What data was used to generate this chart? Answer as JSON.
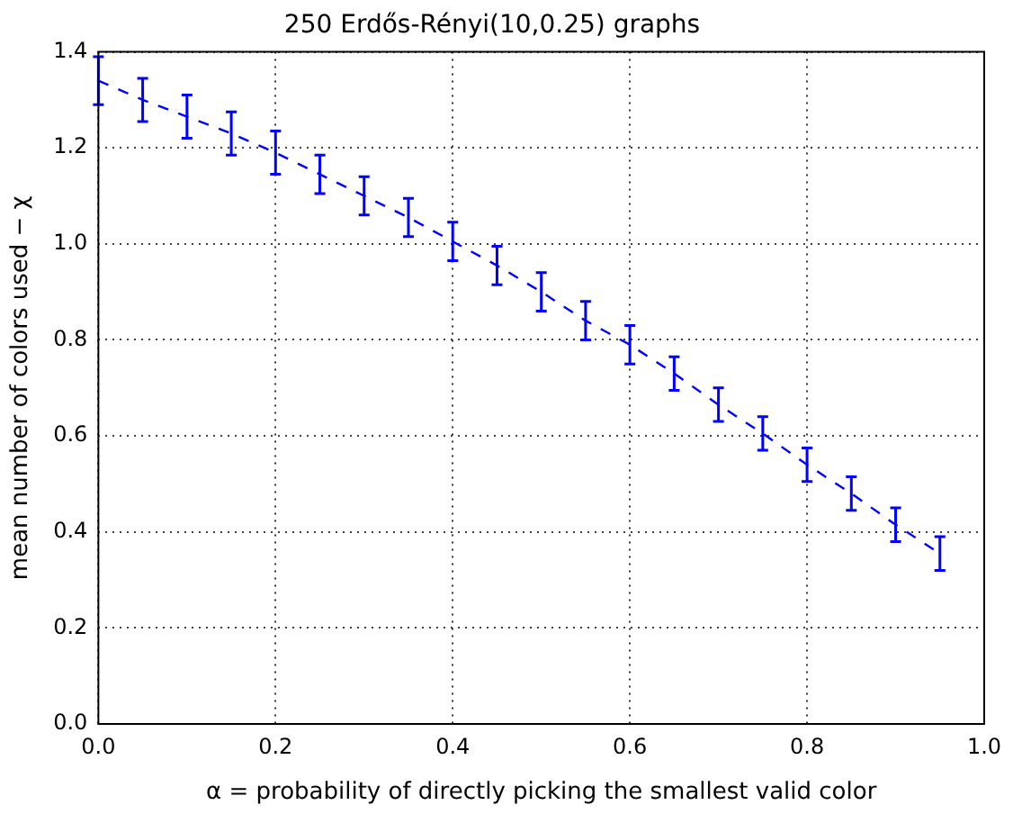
{
  "chart_data": {
    "type": "line",
    "title": "250 Erdős-Rényi(10,0.25) graphs",
    "xlabel": "α = probability of directly picking the smallest valid color",
    "ylabel": "mean number of colors used − χ",
    "x": [
      0,
      0.05,
      0.1,
      0.15,
      0.2,
      0.25,
      0.3,
      0.35,
      0.4,
      0.45,
      0.5,
      0.55,
      0.6,
      0.65,
      0.7,
      0.75,
      0.8,
      0.85,
      0.9,
      0.95
    ],
    "series": [
      {
        "color": "#0000ff",
        "values": [
          1.34,
          1.3,
          1.265,
          1.23,
          1.19,
          1.145,
          1.1,
          1.055,
          1.005,
          0.955,
          0.9,
          0.84,
          0.79,
          0.73,
          0.665,
          0.605,
          0.54,
          0.48,
          0.415,
          0.355
        ],
        "errors": [
          0.05,
          0.045,
          0.045,
          0.045,
          0.045,
          0.04,
          0.04,
          0.04,
          0.04,
          0.04,
          0.04,
          0.04,
          0.04,
          0.035,
          0.035,
          0.035,
          0.035,
          0.035,
          0.035,
          0.035
        ]
      }
    ],
    "xlim": [
      0,
      1
    ],
    "xticks": [
      {
        "value": 0,
        "label": "0.0"
      },
      0.2,
      0.4,
      0.6,
      0.8,
      {
        "value": 1,
        "label": "1.0"
      }
    ],
    "ylim": [
      0,
      1.4
    ],
    "yticks": [
      {
        "value": 0,
        "label": "0.0"
      },
      0.2,
      0.4,
      0.6,
      0.8,
      {
        "value": 1,
        "label": "1.0"
      },
      1.2,
      1.4
    ],
    "grid": true,
    "marker": "none",
    "line_style": "dashed"
  }
}
